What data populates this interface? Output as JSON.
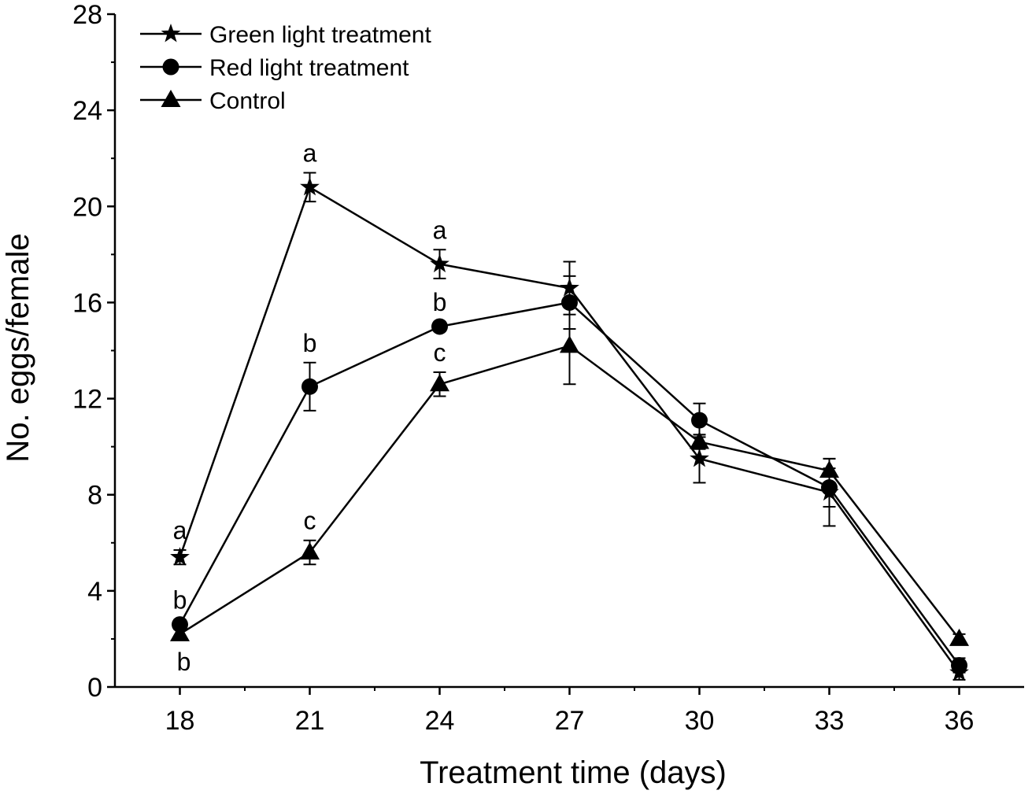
{
  "chart_data": {
    "type": "line",
    "xlabel": "Treatment time (days)",
    "ylabel": "No. eggs/female",
    "x": [
      18,
      21,
      24,
      27,
      30,
      33,
      36
    ],
    "xlim": [
      16.5,
      37.5
    ],
    "ylim": [
      0,
      28
    ],
    "x_ticks": [
      18,
      21,
      24,
      27,
      30,
      33,
      36
    ],
    "y_ticks": [
      0,
      4,
      8,
      12,
      16,
      20,
      24,
      28
    ],
    "grid": false,
    "legend_position": "top-left",
    "series": [
      {
        "name": "Green light treatment",
        "marker": "star",
        "values": [
          5.4,
          20.8,
          17.6,
          16.6,
          9.5,
          8.1,
          0.6
        ],
        "errors": [
          0.3,
          0.6,
          0.6,
          1.1,
          1.0,
          1.4,
          0.3
        ],
        "sig_letters": [
          "a",
          "a",
          "a",
          "",
          "",
          "",
          ""
        ]
      },
      {
        "name": "Red light treatment",
        "marker": "circle",
        "values": [
          2.6,
          12.5,
          15.0,
          16.0,
          11.1,
          8.3,
          0.9
        ],
        "errors": [
          0.2,
          1.0,
          0.2,
          1.1,
          0.7,
          0.8,
          0.3
        ],
        "sig_letters": [
          "b",
          "b",
          "b",
          "",
          "",
          "",
          ""
        ]
      },
      {
        "name": "Control",
        "marker": "triangle",
        "values": [
          2.2,
          5.6,
          12.6,
          14.2,
          10.2,
          9.0,
          2.0
        ],
        "errors": [
          0.2,
          0.5,
          0.5,
          1.6,
          0.3,
          0.5,
          0.2
        ],
        "sig_letters": [
          "b",
          "c",
          "c",
          "",
          "",
          "",
          ""
        ]
      }
    ]
  }
}
